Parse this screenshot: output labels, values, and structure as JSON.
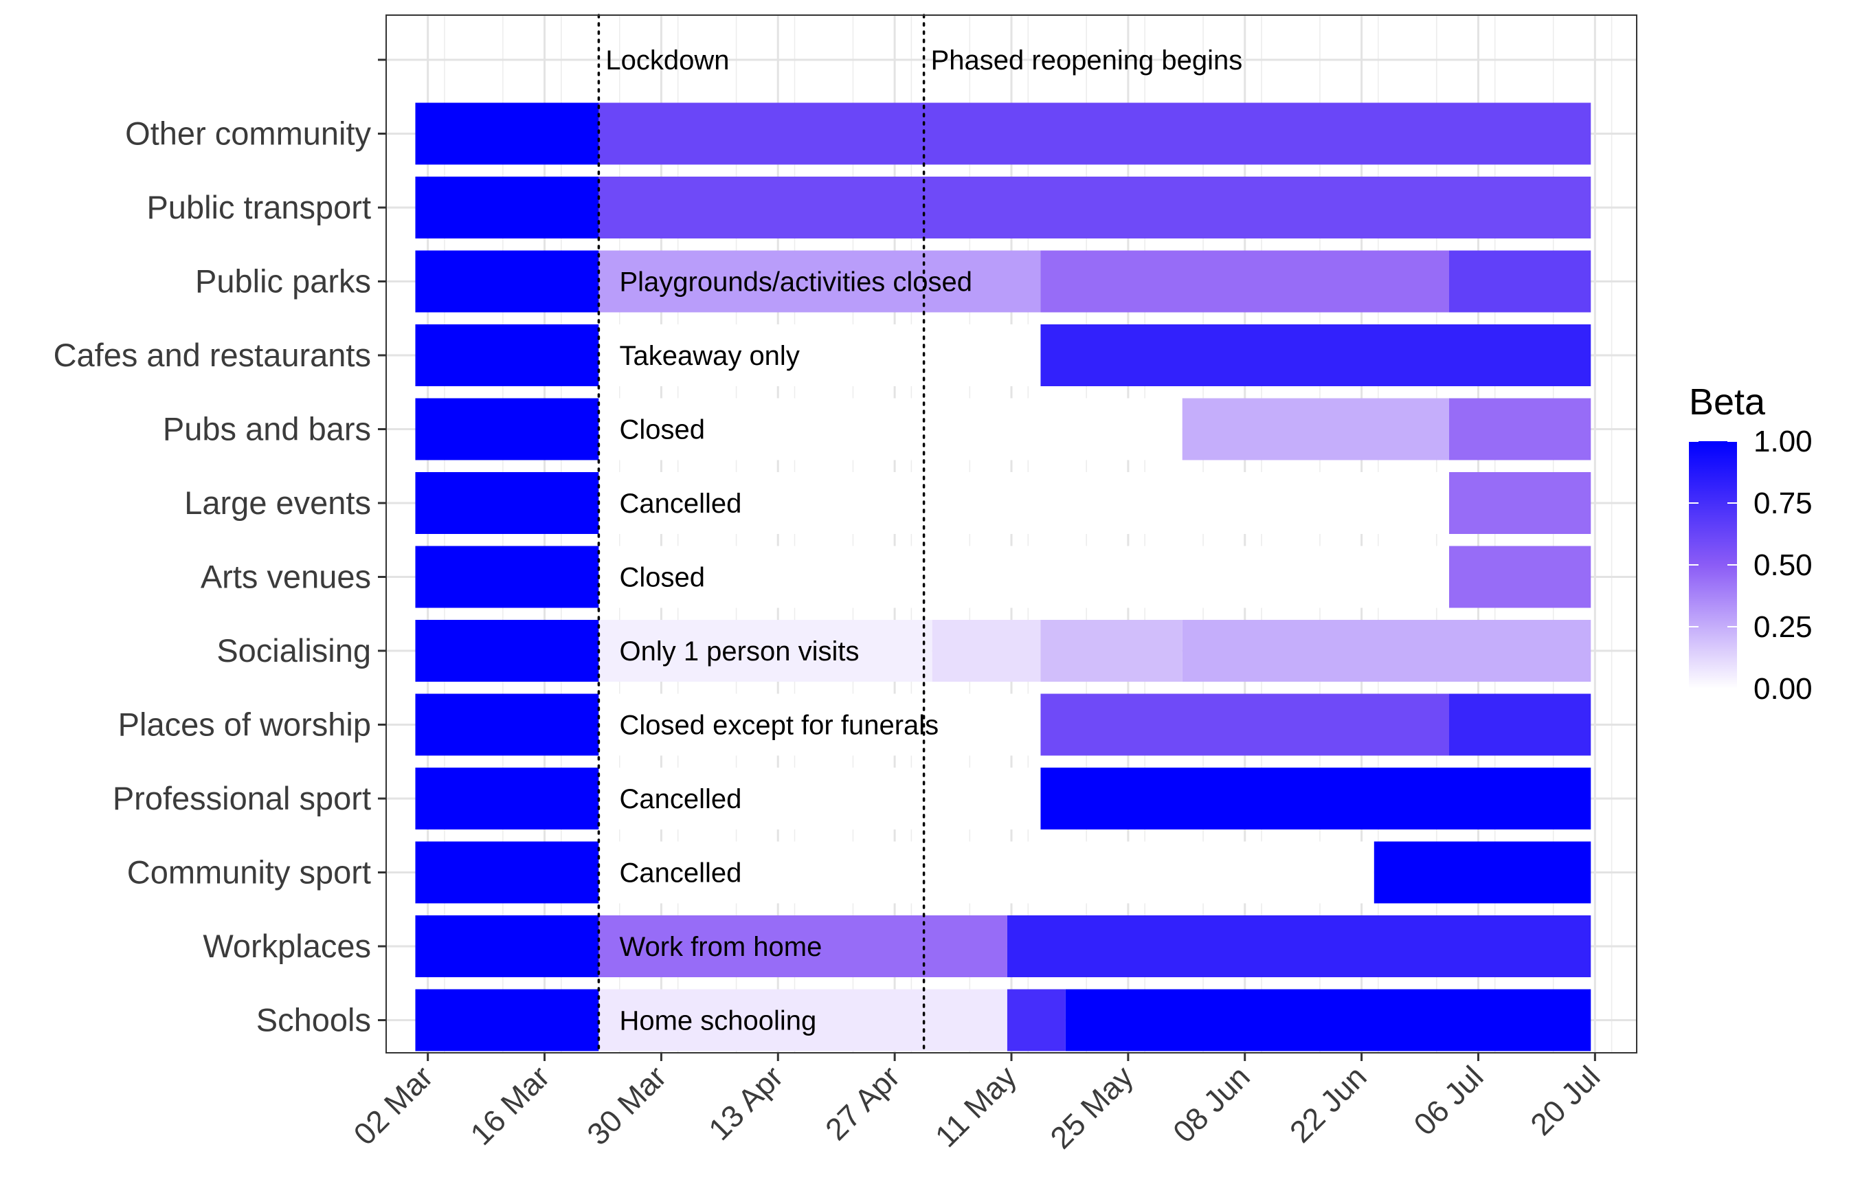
{
  "chart_data": {
    "type": "heatmap",
    "categories": [
      "Other community",
      "Public transport",
      "Public parks",
      "Cafes and restaurants",
      "Pubs and bars",
      "Large events",
      "Arts venues",
      "Socialising",
      "Places of worship",
      "Professional sport",
      "Community sport",
      "Workplaces",
      "Schools"
    ],
    "x_ticks": [
      "02 Mar",
      "16 Mar",
      "30 Mar",
      "13 Apr",
      "27 Apr",
      "11 May",
      "25 May",
      "08 Jun",
      "22 Jun",
      "06 Jul",
      "20 Jul"
    ],
    "x_range": [
      "2020-02-26",
      "2020-07-25"
    ],
    "rows": [
      {
        "category": "Other community",
        "segments": [
          {
            "start": "2020-03-01",
            "end": "2020-03-22",
            "beta": 1.0
          },
          {
            "start": "2020-03-23",
            "end": "2020-07-19",
            "beta": 0.62
          }
        ]
      },
      {
        "category": "Public transport",
        "segments": [
          {
            "start": "2020-03-01",
            "end": "2020-03-22",
            "beta": 1.0
          },
          {
            "start": "2020-03-23",
            "end": "2020-07-19",
            "beta": 0.6
          }
        ]
      },
      {
        "category": "Public parks",
        "segments": [
          {
            "start": "2020-03-01",
            "end": "2020-03-22",
            "beta": 1.0
          },
          {
            "start": "2020-03-23",
            "end": "2020-05-14",
            "beta": 0.3
          },
          {
            "start": "2020-05-15",
            "end": "2020-07-02",
            "beta": 0.45
          },
          {
            "start": "2020-07-03",
            "end": "2020-07-19",
            "beta": 0.65
          }
        ]
      },
      {
        "category": "Cafes and restaurants",
        "segments": [
          {
            "start": "2020-03-01",
            "end": "2020-03-22",
            "beta": 1.0
          },
          {
            "start": "2020-03-23",
            "end": "2020-05-14",
            "beta": 0.0
          },
          {
            "start": "2020-05-15",
            "end": "2020-07-19",
            "beta": 0.82
          }
        ]
      },
      {
        "category": "Pubs and bars",
        "segments": [
          {
            "start": "2020-03-01",
            "end": "2020-03-22",
            "beta": 1.0
          },
          {
            "start": "2020-03-23",
            "end": "2020-05-31",
            "beta": 0.0
          },
          {
            "start": "2020-06-01",
            "end": "2020-07-02",
            "beta": 0.25
          },
          {
            "start": "2020-07-03",
            "end": "2020-07-19",
            "beta": 0.45
          }
        ]
      },
      {
        "category": "Large events",
        "segments": [
          {
            "start": "2020-03-01",
            "end": "2020-03-22",
            "beta": 1.0
          },
          {
            "start": "2020-03-23",
            "end": "2020-07-02",
            "beta": 0.0
          },
          {
            "start": "2020-07-03",
            "end": "2020-07-19",
            "beta": 0.45
          }
        ]
      },
      {
        "category": "Arts venues",
        "segments": [
          {
            "start": "2020-03-01",
            "end": "2020-03-22",
            "beta": 1.0
          },
          {
            "start": "2020-03-23",
            "end": "2020-07-02",
            "beta": 0.0
          },
          {
            "start": "2020-07-03",
            "end": "2020-07-19",
            "beta": 0.45
          }
        ]
      },
      {
        "category": "Socialising",
        "segments": [
          {
            "start": "2020-03-01",
            "end": "2020-03-22",
            "beta": 1.0
          },
          {
            "start": "2020-03-23",
            "end": "2020-05-01",
            "beta": 0.05
          },
          {
            "start": "2020-05-02",
            "end": "2020-05-14",
            "beta": 0.1
          },
          {
            "start": "2020-05-15",
            "end": "2020-05-31",
            "beta": 0.2
          },
          {
            "start": "2020-06-01",
            "end": "2020-07-19",
            "beta": 0.25
          }
        ]
      },
      {
        "category": "Places of worship",
        "segments": [
          {
            "start": "2020-03-01",
            "end": "2020-03-22",
            "beta": 1.0
          },
          {
            "start": "2020-03-23",
            "end": "2020-05-14",
            "beta": 0.0
          },
          {
            "start": "2020-05-15",
            "end": "2020-07-02",
            "beta": 0.6
          },
          {
            "start": "2020-07-03",
            "end": "2020-07-19",
            "beta": 0.8
          }
        ]
      },
      {
        "category": "Professional sport",
        "segments": [
          {
            "start": "2020-03-01",
            "end": "2020-03-22",
            "beta": 1.0
          },
          {
            "start": "2020-03-23",
            "end": "2020-05-14",
            "beta": 0.0
          },
          {
            "start": "2020-05-15",
            "end": "2020-07-19",
            "beta": 1.0
          }
        ]
      },
      {
        "category": "Community sport",
        "segments": [
          {
            "start": "2020-03-01",
            "end": "2020-03-22",
            "beta": 1.0
          },
          {
            "start": "2020-03-23",
            "end": "2020-06-23",
            "beta": 0.0
          },
          {
            "start": "2020-06-24",
            "end": "2020-07-19",
            "beta": 1.0
          }
        ]
      },
      {
        "category": "Workplaces",
        "segments": [
          {
            "start": "2020-03-01",
            "end": "2020-03-22",
            "beta": 1.0
          },
          {
            "start": "2020-03-23",
            "end": "2020-05-10",
            "beta": 0.45
          },
          {
            "start": "2020-05-11",
            "end": "2020-07-19",
            "beta": 0.82
          }
        ]
      },
      {
        "category": "Schools",
        "segments": [
          {
            "start": "2020-03-01",
            "end": "2020-03-22",
            "beta": 1.0
          },
          {
            "start": "2020-03-23",
            "end": "2020-05-10",
            "beta": 0.07
          },
          {
            "start": "2020-05-11",
            "end": "2020-05-17",
            "beta": 0.75
          },
          {
            "start": "2020-05-18",
            "end": "2020-07-19",
            "beta": 1.0
          }
        ]
      }
    ],
    "row_annotations": [
      {
        "category": "Public parks",
        "text": "Playgrounds/activities closed"
      },
      {
        "category": "Cafes and restaurants",
        "text": "Takeaway only"
      },
      {
        "category": "Pubs and bars",
        "text": "Closed"
      },
      {
        "category": "Large events",
        "text": "Cancelled"
      },
      {
        "category": "Arts venues",
        "text": "Closed"
      },
      {
        "category": "Socialising",
        "text": "Only 1 person visits"
      },
      {
        "category": "Places of worship",
        "text": "Closed except for funerals"
      },
      {
        "category": "Professional sport",
        "text": "Cancelled"
      },
      {
        "category": "Community sport",
        "text": "Cancelled"
      },
      {
        "category": "Workplaces",
        "text": "Work from home"
      },
      {
        "category": "Schools",
        "text": "Home schooling"
      }
    ],
    "vlines": [
      {
        "date": "2020-03-23",
        "label": "Lockdown"
      },
      {
        "date": "2020-05-01",
        "label": "Phased reopening begins"
      }
    ],
    "legend": {
      "title": "Beta",
      "ticks": [
        "0.00",
        "0.25",
        "0.50",
        "0.75",
        "1.00"
      ],
      "range": [
        0,
        1
      ],
      "color_low": "#ffffff",
      "color_high": "#0000ff",
      "color_mid": "#8b5cf6",
      "placement": "right"
    },
    "grid": true
  }
}
